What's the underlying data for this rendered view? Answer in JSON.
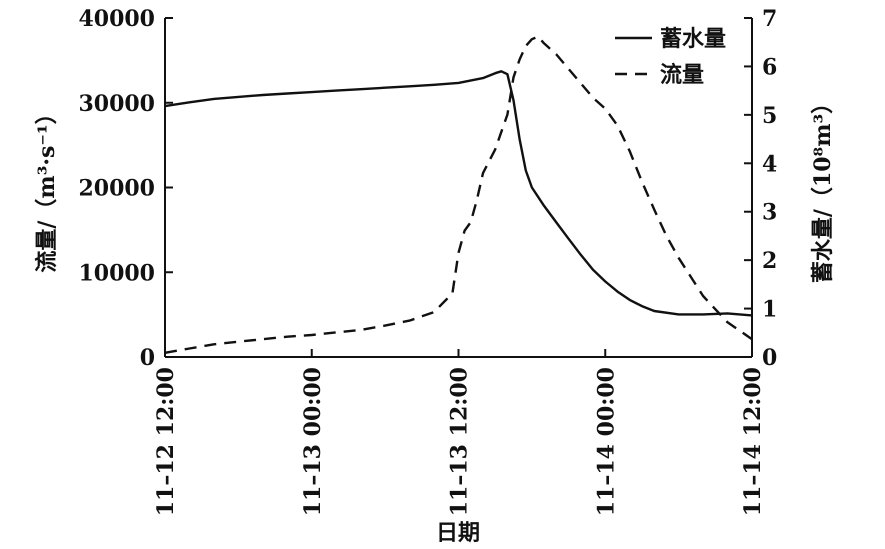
{
  "chart_data": {
    "type": "line",
    "xlabel": "日期",
    "ylabel_left": "流量/（m³·s⁻¹）",
    "ylabel_right": "蓄水量/（10⁸m³）",
    "x_tick_labels": [
      "11–12 12:00",
      "11–13 00:00",
      "11–13 12:00",
      "11–14 00:00",
      "11–14 12:00"
    ],
    "x_range_hours": [
      0,
      48
    ],
    "y_left_ticks": [
      "0",
      "10000",
      "20000",
      "30000",
      "40000"
    ],
    "y_left_range": [
      0,
      40000
    ],
    "y_right_ticks": [
      "0",
      "1",
      "2",
      "3",
      "4",
      "5",
      "6",
      "7"
    ],
    "y_right_range": [
      0,
      7
    ],
    "grid": false,
    "legend_position": "top-right",
    "series": [
      {
        "name": "蓄水量",
        "axis": "right",
        "style": "solid",
        "x": [
          0,
          2,
          4,
          6,
          8,
          10,
          12,
          14,
          16,
          18,
          20,
          22,
          24,
          26,
          27,
          27.5,
          28,
          28.5,
          29,
          29.5,
          30,
          31,
          32,
          33,
          34,
          35,
          36,
          37,
          38,
          39,
          40,
          42,
          44,
          46,
          48
        ],
        "y": [
          5.18,
          5.26,
          5.33,
          5.37,
          5.41,
          5.44,
          5.47,
          5.5,
          5.53,
          5.56,
          5.59,
          5.62,
          5.66,
          5.76,
          5.86,
          5.9,
          5.84,
          5.3,
          4.5,
          3.85,
          3.5,
          3.12,
          2.78,
          2.44,
          2.11,
          1.8,
          1.56,
          1.35,
          1.18,
          1.05,
          0.95,
          0.88,
          0.88,
          0.9,
          0.86
        ]
      },
      {
        "name": "流量",
        "axis": "left",
        "style": "dashed",
        "x": [
          0,
          2,
          4,
          6,
          8,
          10,
          12,
          14,
          16,
          18,
          20,
          22,
          23.5,
          24,
          24.5,
          25,
          25.5,
          26,
          27,
          28,
          28.5,
          29,
          29.5,
          30,
          30.5,
          31,
          32,
          33,
          34,
          35,
          36,
          37,
          38,
          39,
          40,
          41,
          42,
          44,
          46,
          48
        ],
        "y": [
          500,
          1000,
          1500,
          1800,
          2100,
          2400,
          2600,
          2900,
          3200,
          3700,
          4300,
          5300,
          7500,
          12300,
          14900,
          15900,
          18500,
          21700,
          24500,
          28600,
          33000,
          35100,
          36700,
          37500,
          37800,
          37000,
          35700,
          34000,
          32300,
          30600,
          29300,
          27300,
          24300,
          20700,
          17400,
          14300,
          11700,
          7200,
          4100,
          2100
        ]
      }
    ]
  }
}
